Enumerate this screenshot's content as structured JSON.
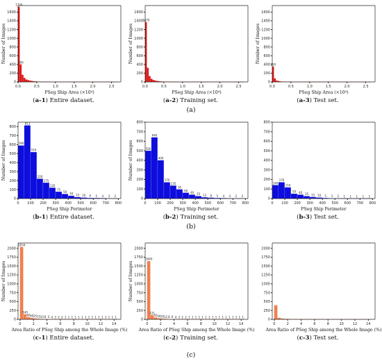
{
  "colors": {
    "red": "#dd1111",
    "blue": "#0d0ddd",
    "orange": "#f07f50",
    "axis": "#222222"
  },
  "row_labels": [
    "(a)",
    "(b)",
    "(c)"
  ],
  "captions": [
    {
      "id": "a-1",
      "text": "Entire dataset."
    },
    {
      "id": "a-2",
      "text": "Training set."
    },
    {
      "id": "a-3",
      "text": "Test set."
    },
    {
      "id": "b-1",
      "text": "Entire dataset."
    },
    {
      "id": "b-2",
      "text": "Training set."
    },
    {
      "id": "b-3",
      "text": "Test set."
    },
    {
      "id": "c-1",
      "text": "Entire dataset."
    },
    {
      "id": "c-2",
      "text": "Training set."
    },
    {
      "id": "c-3",
      "text": "Test set."
    }
  ],
  "chart_data": [
    {
      "id": "a-1",
      "type": "bar",
      "color": "red",
      "xlabel": "PSeg Ship Area (×10⁴)",
      "ylabel": "Number of Images",
      "xlim": [
        0,
        2.75
      ],
      "ylim": [
        0,
        1750
      ],
      "xticks": [
        "0.0",
        "0.5",
        "1.0",
        "1.5",
        "2.0",
        "2.5"
      ],
      "xtick_values": [
        0,
        0.5,
        1.0,
        1.5,
        2.0,
        2.5
      ],
      "yticks": [
        0,
        200,
        400,
        600,
        800,
        1000,
        1200,
        1400,
        1600
      ],
      "bin_start": 0,
      "bin_width": 0.05,
      "values": [
        1720,
        400,
        160,
        90,
        55,
        40,
        30,
        22,
        15,
        10,
        8,
        6,
        5,
        4,
        3,
        3,
        2,
        2,
        2,
        1,
        1,
        1,
        1,
        1,
        1,
        1,
        1,
        1,
        1,
        1,
        1,
        1,
        1,
        1,
        1,
        1,
        1,
        1,
        1,
        1,
        1,
        1,
        1,
        1,
        1,
        1,
        1,
        1,
        1,
        1,
        1,
        1,
        1
      ],
      "bar_labels": {
        "0": "1720",
        "1": "400"
      }
    },
    {
      "id": "a-2",
      "type": "bar",
      "color": "red",
      "xlabel": "PSeg Ship Area (×10⁴)",
      "ylabel": "Number of Images",
      "xlim": [
        0,
        2.75
      ],
      "ylim": [
        0,
        1750
      ],
      "xticks": [
        "0.0",
        "0.5",
        "1.0",
        "1.5",
        "2.0",
        "2.5"
      ],
      "xtick_values": [
        0,
        0.5,
        1.0,
        1.5,
        2.0,
        2.5
      ],
      "yticks": [
        0,
        200,
        400,
        600,
        800,
        1000,
        1200,
        1400,
        1600
      ],
      "bin_start": 0,
      "bin_width": 0.05,
      "values": [
        1370,
        320,
        130,
        70,
        45,
        30,
        22,
        16,
        11,
        8,
        6,
        5,
        4,
        3,
        2,
        2,
        2,
        1,
        1,
        1,
        1,
        1,
        1,
        1,
        1,
        1,
        1,
        1,
        1,
        1,
        1,
        1,
        1,
        1,
        1,
        1,
        1,
        1,
        1,
        1,
        1,
        1,
        1,
        1,
        1,
        1,
        1,
        1,
        1,
        1,
        1,
        1,
        1
      ],
      "bar_labels": {
        "0": "1370"
      }
    },
    {
      "id": "a-3",
      "type": "bar",
      "color": "red",
      "xlabel": "PSeg Ship Area (×10⁴)",
      "ylabel": "Number of Images",
      "xlim": [
        0,
        2.75
      ],
      "ylim": [
        0,
        1750
      ],
      "xticks": [
        "0.0",
        "0.5",
        "1.0",
        "1.5",
        "2.0",
        "2.5"
      ],
      "xtick_values": [
        0,
        0.5,
        1.0,
        1.5,
        2.0,
        2.5
      ],
      "yticks": [
        0,
        200,
        400,
        600,
        800,
        1000,
        1200,
        1400,
        1600
      ],
      "bin_start": 0,
      "bin_width": 0.05,
      "values": [
        350,
        80,
        30,
        18,
        10,
        7,
        5,
        4,
        3,
        2,
        2,
        1,
        1,
        1,
        1,
        1,
        1,
        1,
        1,
        1,
        1,
        1,
        1,
        1,
        1,
        1,
        1,
        1,
        1,
        1,
        1,
        1,
        1,
        1,
        1,
        1,
        1,
        1,
        1,
        1,
        1,
        1,
        1,
        1,
        1,
        1,
        1,
        1,
        1,
        1,
        1,
        1,
        1
      ],
      "bar_labels": {
        "0": "350"
      }
    },
    {
      "id": "b-1",
      "type": "bar",
      "color": "blue",
      "xlabel": "PSeg Ship Perimeter",
      "ylabel": "Number of Images",
      "xlim": [
        0,
        820
      ],
      "ylim": [
        0,
        850
      ],
      "xticks": [
        "0",
        "100",
        "200",
        "300",
        "400",
        "500",
        "600",
        "700",
        "800"
      ],
      "xtick_values": [
        0,
        100,
        200,
        300,
        400,
        500,
        600,
        700,
        800
      ],
      "yticks": [
        0,
        100,
        200,
        300,
        400,
        500,
        600,
        700,
        800
      ],
      "bin_start": 0,
      "bin_width": 50,
      "values": [
        590,
        813,
        516,
        220,
        175,
        120,
        75,
        50,
        30,
        15,
        10,
        6,
        5,
        4,
        3,
        2
      ],
      "bar_labels": {
        "0": "590",
        "1": "813",
        "2": "516",
        "3": "220",
        "4": "175",
        "5": "120",
        "6": "75",
        "7": "50",
        "8": "30",
        "9": "15",
        "10": "10",
        "11": "6",
        "12": "5",
        "13": "4",
        "14": "3",
        "15": "2"
      }
    },
    {
      "id": "b-2",
      "type": "bar",
      "color": "blue",
      "xlabel": "PSeg Ship Perimeter",
      "ylabel": "Number of Images",
      "xlim": [
        0,
        820
      ],
      "ylim": [
        0,
        800
      ],
      "xticks": [
        "0",
        "100",
        "200",
        "300",
        "400",
        "500",
        "600",
        "700",
        "800"
      ],
      "xtick_values": [
        0,
        100,
        200,
        300,
        400,
        500,
        600,
        700,
        800
      ],
      "yticks": [
        0,
        100,
        200,
        300,
        400,
        500,
        600,
        700,
        800
      ],
      "bin_start": 0,
      "bin_width": 50,
      "values": [
        500,
        640,
        400,
        170,
        135,
        95,
        60,
        40,
        25,
        12,
        8,
        5,
        4,
        3,
        2,
        2
      ],
      "bar_labels": {
        "0": "500",
        "1": "640",
        "2": "400",
        "3": "170",
        "4": "135",
        "5": "95",
        "6": "60",
        "7": "40",
        "8": "25",
        "9": "12",
        "10": "8",
        "11": "5",
        "12": "4",
        "13": "3",
        "14": "2",
        "15": "2"
      }
    },
    {
      "id": "b-3",
      "type": "bar",
      "color": "blue",
      "xlabel": "PSeg Ship Perimeter",
      "ylabel": "",
      "xlim": [
        0,
        820
      ],
      "ylim": [
        0,
        800
      ],
      "xticks": [
        "0",
        "100",
        "200",
        "300",
        "400",
        "500",
        "600",
        "700",
        "800"
      ],
      "xtick_values": [
        0,
        100,
        200,
        300,
        400,
        500,
        600,
        700,
        800
      ],
      "yticks": [
        0,
        100,
        200,
        300,
        400,
        500,
        600,
        700,
        800
      ],
      "bin_start": 0,
      "bin_width": 50,
      "values": [
        140,
        170,
        116,
        50,
        40,
        25,
        15,
        10,
        5,
        3,
        2,
        1,
        1,
        1,
        1,
        1
      ],
      "bar_labels": {
        "0": "140",
        "1": "170",
        "2": "116",
        "3": "50",
        "4": "40",
        "5": "25",
        "6": "15",
        "7": "10",
        "8": "5",
        "9": "3",
        "10": "2",
        "11": "1",
        "12": "1",
        "13": "1",
        "14": "1",
        "15": "1"
      }
    },
    {
      "id": "c-1",
      "type": "bar",
      "color": "orange",
      "xlabel": "Area Ratio of PSeg Ship among the Whole Image (%)",
      "ylabel": "Number of Images",
      "xlim": [
        -0.3,
        15
      ],
      "ylim": [
        0,
        2150
      ],
      "xticks": [
        "0",
        "2",
        "4",
        "6",
        "8",
        "10",
        "12",
        "14"
      ],
      "xtick_values": [
        0,
        2,
        4,
        6,
        8,
        10,
        12,
        14
      ],
      "yticks": [
        0,
        250,
        500,
        750,
        1000,
        1250,
        1500,
        1750,
        2000
      ],
      "bin_start": 0,
      "bin_width": 0.5,
      "values": [
        2034,
        140,
        60,
        40,
        25,
        15,
        10,
        8,
        5,
        4,
        3,
        2,
        2,
        1,
        1,
        1,
        1,
        1,
        1,
        1,
        1,
        1,
        1,
        1,
        1,
        1,
        1,
        1,
        1
      ],
      "bar_labels": {
        "0": "2034",
        "1": "140",
        "2": "60",
        "3": "40",
        "4": "25",
        "5": "15",
        "6": "10",
        "7": "8",
        "8": "5",
        "9": "4",
        "10": "3",
        "11": "2",
        "12": "2",
        "13": "1",
        "14": "1",
        "15": "1",
        "16": "1",
        "17": "1",
        "18": "1",
        "19": "1",
        "20": "1",
        "21": "1",
        "22": "1",
        "23": "1",
        "24": "1",
        "25": "1",
        "26": "1",
        "27": "1",
        "28": "1"
      }
    },
    {
      "id": "c-2",
      "type": "bar",
      "color": "orange",
      "xlabel": "Area Ratio of PSeg Ship among the Whole Image (%)",
      "ylabel": "Number of Images",
      "xlim": [
        -0.3,
        15
      ],
      "ylim": [
        0,
        2150
      ],
      "xticks": [
        "0",
        "2",
        "4",
        "6",
        "8",
        "10",
        "12",
        "14"
      ],
      "xtick_values": [
        0,
        2,
        4,
        6,
        8,
        10,
        12,
        14
      ],
      "yticks": [
        0,
        250,
        500,
        750,
        1000,
        1250,
        1500,
        1750,
        2000
      ],
      "bin_start": 0,
      "bin_width": 0.5,
      "values": [
        1640,
        121,
        50,
        30,
        20,
        12,
        8,
        6,
        4,
        3,
        2,
        2,
        1,
        1,
        1,
        1,
        1,
        1,
        1,
        1,
        1,
        1,
        1,
        1,
        1,
        1,
        1,
        1,
        1
      ],
      "bar_labels": {
        "0": "1640",
        "1": "121",
        "2": "50",
        "3": "30",
        "4": "20",
        "5": "12",
        "6": "8",
        "7": "6",
        "8": "4",
        "9": "3",
        "10": "2",
        "11": "2",
        "12": "1",
        "13": "1",
        "14": "1",
        "15": "1",
        "16": "1",
        "17": "1",
        "18": "1",
        "19": "1",
        "20": "1",
        "21": "1",
        "22": "1",
        "23": "1",
        "24": "1",
        "25": "1",
        "26": "1",
        "27": "1",
        "28": "1"
      }
    },
    {
      "id": "c-3",
      "type": "bar",
      "color": "orange",
      "xlabel": "Area Ratio of PSeg Ship among the Whole Image (%)",
      "ylabel": "",
      "xlim": [
        -0.3,
        15
      ],
      "ylim": [
        0,
        2150
      ],
      "xticks": [
        "0",
        "2",
        "4",
        "6",
        "8",
        "10",
        "12",
        "14"
      ],
      "xtick_values": [
        0,
        2,
        4,
        6,
        8,
        10,
        12,
        14
      ],
      "yticks": [
        0,
        250,
        500,
        750,
        1000,
        1250,
        1500,
        1750,
        2000
      ],
      "bin_start": 0,
      "bin_width": 0.5,
      "values": [
        394,
        40,
        20,
        12,
        8,
        5,
        3,
        2,
        1,
        1,
        1,
        1,
        1,
        1,
        1,
        1,
        1,
        1,
        1,
        1,
        1,
        1,
        1,
        1,
        1,
        1,
        1,
        1,
        1
      ],
      "bar_labels": {}
    }
  ]
}
